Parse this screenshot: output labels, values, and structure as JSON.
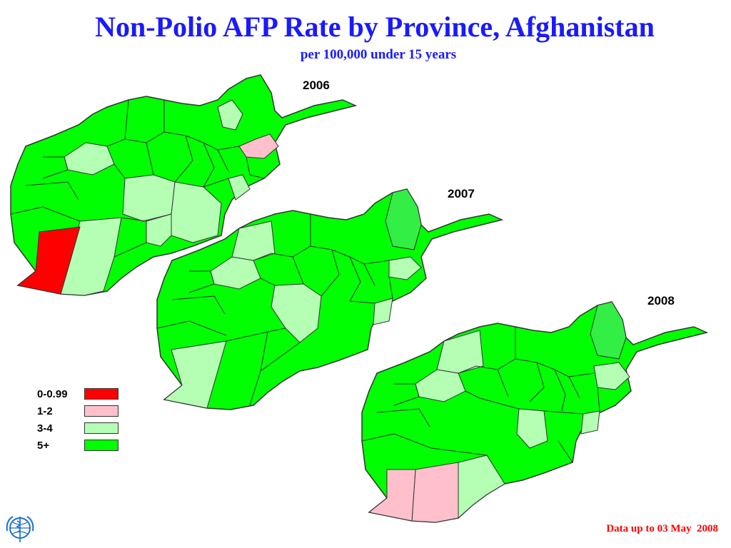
{
  "title": "Non-Polio AFP Rate by Province, Afghanistan",
  "subtitle": "per 100,000 under 15 years",
  "maps": [
    {
      "year": "2006"
    },
    {
      "year": "2007"
    },
    {
      "year": "2008"
    }
  ],
  "legend": [
    {
      "label": "0-0.99",
      "color": "#ff0000"
    },
    {
      "label": "1-2",
      "color": "#ffc0cb"
    },
    {
      "label": "3-4",
      "color": "#b4ffb4"
    },
    {
      "label": "5+",
      "color": "#00ff00"
    }
  ],
  "footnote": "Data up to 03 May  2008",
  "logo": {
    "icon": "who-emblem-icon"
  },
  "colors": {
    "title": "#1a1aff",
    "footnote": "#ff0000",
    "border": "#333333"
  }
}
